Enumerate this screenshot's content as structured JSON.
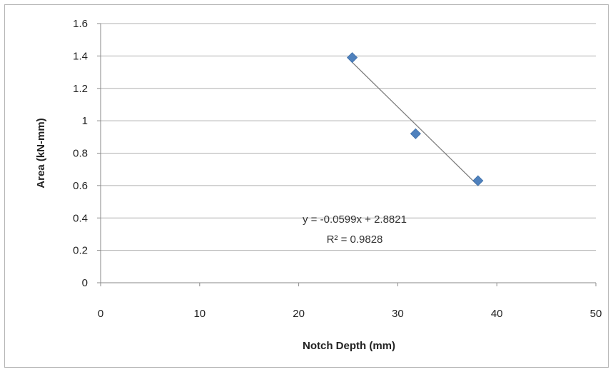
{
  "chart_data": {
    "type": "scatter",
    "title": "",
    "xlabel": "Notch Depth (mm)",
    "ylabel": "Area (kN-mm)",
    "xlim": [
      0,
      50
    ],
    "ylim": [
      0,
      1.6
    ],
    "x_ticks": [
      "0",
      "10",
      "20",
      "30",
      "40",
      "50"
    ],
    "y_ticks": [
      "0",
      "0.2",
      "0.4",
      "0.6",
      "0.8",
      "1",
      "1.2",
      "1.4",
      "1.6"
    ],
    "grid": "horizontal",
    "legend": "none",
    "marker": "diamond",
    "colors": {
      "marker": "#4f81bd",
      "trendline": "#7f7f7f",
      "grid": "#b0b0b0"
    },
    "series": [
      {
        "x": [
          25.4,
          31.8,
          38.1
        ],
        "y": [
          1.39,
          0.92,
          0.63
        ]
      }
    ],
    "trendline": {
      "slope": -0.0599,
      "intercept": 2.8821,
      "x_range": [
        25.4,
        38.1
      ]
    },
    "annotations": {
      "equation": "y = -0.0599x + 2.8821",
      "r_squared": "R² = 0.9828"
    }
  }
}
